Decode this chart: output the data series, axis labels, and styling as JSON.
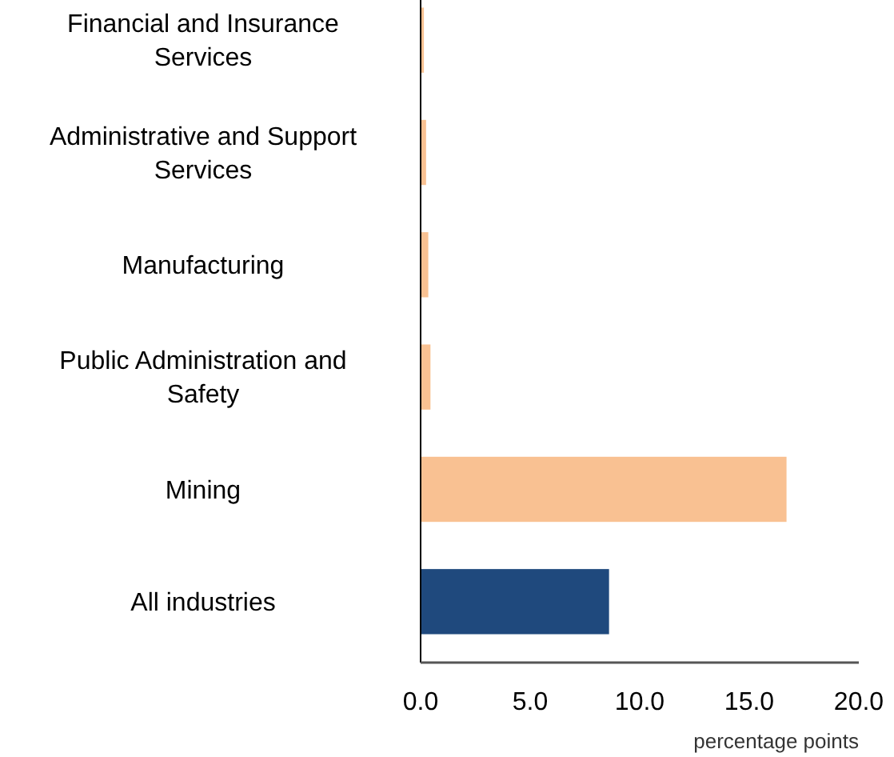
{
  "chart_data": {
    "type": "bar",
    "orientation": "horizontal",
    "xlabel": "percentage points",
    "categories": [
      "Financial and Insurance Services",
      "Administrative and Support Services",
      "Manufacturing",
      "Public Administration and Safety",
      "Mining",
      "All industries"
    ],
    "values": [
      0.15,
      0.25,
      0.35,
      0.45,
      16.7,
      8.6
    ],
    "colors": [
      "#f9c192",
      "#f9c192",
      "#f9c192",
      "#f9c192",
      "#f9c192",
      "#1f497d"
    ],
    "xlim": [
      0,
      20
    ],
    "xticks": [
      {
        "value": 0,
        "label": "0.0"
      },
      {
        "value": 5,
        "label": "5.0"
      },
      {
        "value": 10,
        "label": "10.0"
      },
      {
        "value": 15,
        "label": "15.0"
      },
      {
        "value": 20,
        "label": "20.0"
      }
    ],
    "tick_labels": true
  }
}
